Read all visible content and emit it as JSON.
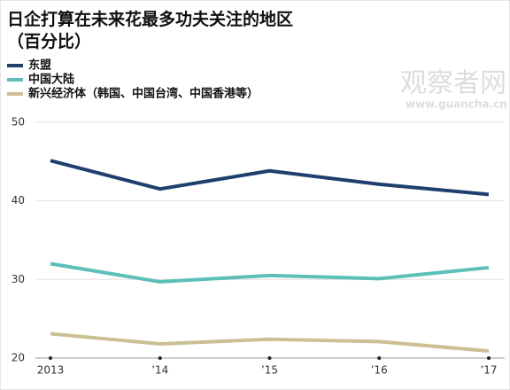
{
  "chart_data": {
    "type": "line",
    "title": "日企打算在未来花最多功夫关注的地区（百分比）",
    "watermark": "观察者网",
    "watermark_url": "www.guancha.cn",
    "x": [
      "2013",
      "’14",
      "’15",
      "’16",
      "’17"
    ],
    "series": [
      {
        "name": "东盟",
        "color": "#1f3f6e",
        "values": [
          45.1,
          41.5,
          43.8,
          42.1,
          40.8
        ]
      },
      {
        "name": "中国大陆",
        "color": "#5cbfb8",
        "values": [
          32.0,
          29.7,
          30.5,
          30.1,
          31.5
        ]
      },
      {
        "name": "新兴经济体（韩国、中国台湾、中国香港等）",
        "color": "#cbbf93",
        "values": [
          23.1,
          21.8,
          22.4,
          22.1,
          20.9
        ]
      }
    ],
    "ylim": [
      20,
      52
    ],
    "yticks": [
      20,
      30,
      40,
      50
    ],
    "grid": true
  }
}
